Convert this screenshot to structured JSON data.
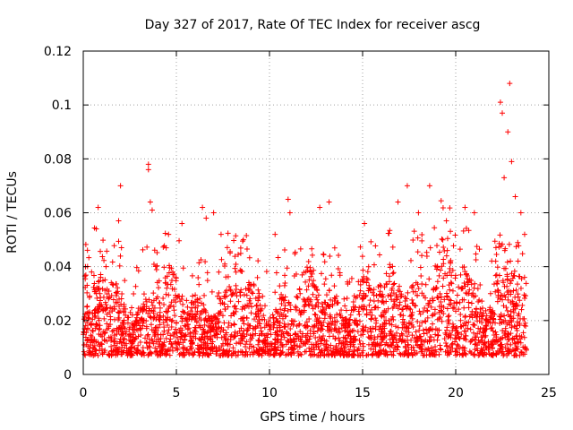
{
  "chart_data": {
    "type": "scatter",
    "title": "Day 327 of 2017, Rate Of TEC Index for receiver ascg",
    "xlabel": "GPS time / hours",
    "ylabel": "ROTI / TECUs",
    "xlim": [
      0,
      25
    ],
    "ylim": [
      0,
      0.12
    ],
    "xticks": [
      0,
      5,
      10,
      15,
      20,
      25
    ],
    "xtick_labels": [
      "0",
      "5",
      "10",
      "15",
      "20",
      "25"
    ],
    "yticks": [
      0,
      0.02,
      0.04,
      0.06,
      0.08,
      0.1,
      0.12
    ],
    "ytick_labels": [
      "0",
      "0.02",
      "0.04",
      "0.06",
      "0.08",
      "0.1",
      "0.12"
    ],
    "grid": true,
    "marker": "+",
    "marker_color": "#ff0000",
    "series": [
      {
        "name": "ROTI",
        "note": "dense band ~0.005-0.035 TECU/s from 0 to ~23.8 h; listed points are the distinct outliers",
        "dense_band": {
          "x_range": [
            0,
            23.8
          ],
          "y_range": [
            0.005,
            0.035
          ]
        },
        "x": [
          0.7,
          0.8,
          1.9,
          2.0,
          3.5,
          3.5,
          3.6,
          3.7,
          5.3,
          6.4,
          6.6,
          7.0,
          7.4,
          8.6,
          10.3,
          11.0,
          11.1,
          12.7,
          13.2,
          15.1,
          16.9,
          17.4,
          18.0,
          18.6,
          19.5,
          20.5,
          21.0,
          22.4,
          22.5,
          22.6,
          22.8,
          22.9,
          23.0,
          23.2,
          23.5,
          23.7
        ],
        "y": [
          0.054,
          0.062,
          0.057,
          0.07,
          0.078,
          0.076,
          0.064,
          0.061,
          0.056,
          0.062,
          0.058,
          0.06,
          0.052,
          0.05,
          0.052,
          0.065,
          0.06,
          0.062,
          0.064,
          0.056,
          0.064,
          0.07,
          0.06,
          0.07,
          0.057,
          0.062,
          0.06,
          0.101,
          0.097,
          0.073,
          0.09,
          0.108,
          0.079,
          0.066,
          0.06,
          0.052
        ]
      }
    ]
  }
}
